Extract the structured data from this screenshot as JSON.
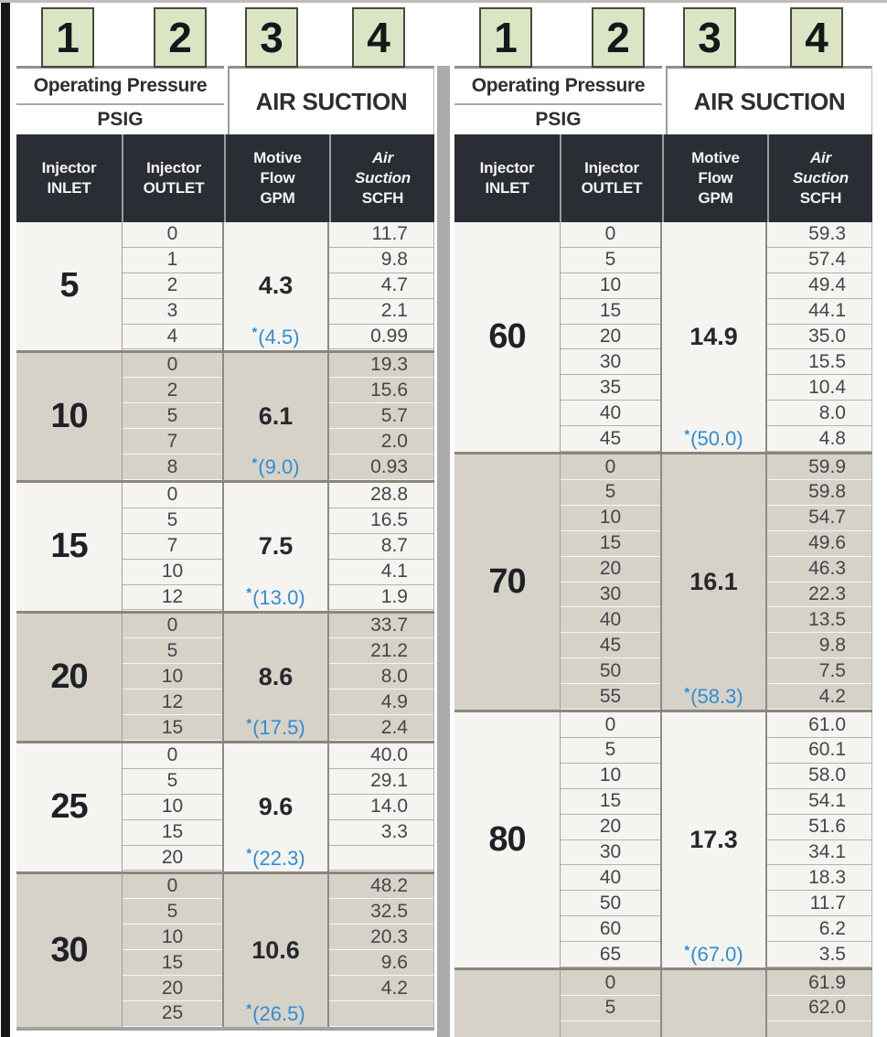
{
  "page": {
    "column_markers": [
      "1",
      "2",
      "3",
      "4"
    ],
    "banner": {
      "pressure_title": "Operating Pressure",
      "pressure_unit": "PSIG",
      "suction_title": "AIR SUCTION"
    },
    "columns": {
      "inlet": {
        "line1": "Injector",
        "line2": "INLET"
      },
      "outlet": {
        "line1": "Injector",
        "line2": "OUTLET"
      },
      "motive": {
        "line1": "Motive",
        "line2": "Flow",
        "line3": "GPM"
      },
      "suction": {
        "line1": "Air",
        "line2": "Suction",
        "line3": "SCFH"
      }
    },
    "colors": {
      "marker_fill": "#dbe5c3",
      "header_dark": "#2a2d34",
      "group_light": "#f5f4f0",
      "group_shaded": "#d6d2c8",
      "starred_value_blue": "#2f8ed4"
    }
  },
  "tables": [
    {
      "name": "left",
      "groups": [
        {
          "inlet": "5",
          "motive": "4.3",
          "motive_star": {
            "mark": "*",
            "value": "(4.5)"
          },
          "rows": [
            {
              "outlet": "0",
              "suction": "11.7"
            },
            {
              "outlet": "1",
              "suction": "9.8"
            },
            {
              "outlet": "2",
              "suction": "4.7"
            },
            {
              "outlet": "3",
              "suction": "2.1"
            },
            {
              "outlet": "4",
              "suction": "0.99"
            }
          ]
        },
        {
          "inlet": "10",
          "motive": "6.1",
          "motive_star": {
            "mark": "*",
            "value": "(9.0)"
          },
          "rows": [
            {
              "outlet": "0",
              "suction": "19.3"
            },
            {
              "outlet": "2",
              "suction": "15.6"
            },
            {
              "outlet": "5",
              "suction": "5.7"
            },
            {
              "outlet": "7",
              "suction": "2.0"
            },
            {
              "outlet": "8",
              "suction": "0.93"
            }
          ]
        },
        {
          "inlet": "15",
          "motive": "7.5",
          "motive_star": {
            "mark": "*",
            "value": "(13.0)"
          },
          "rows": [
            {
              "outlet": "0",
              "suction": "28.8"
            },
            {
              "outlet": "5",
              "suction": "16.5"
            },
            {
              "outlet": "7",
              "suction": "8.7"
            },
            {
              "outlet": "10",
              "suction": "4.1"
            },
            {
              "outlet": "12",
              "suction": "1.9"
            }
          ]
        },
        {
          "inlet": "20",
          "motive": "8.6",
          "motive_star": {
            "mark": "*",
            "value": "(17.5)"
          },
          "rows": [
            {
              "outlet": "0",
              "suction": "33.7"
            },
            {
              "outlet": "5",
              "suction": "21.2"
            },
            {
              "outlet": "10",
              "suction": "8.0"
            },
            {
              "outlet": "12",
              "suction": "4.9"
            },
            {
              "outlet": "15",
              "suction": "2.4"
            }
          ]
        },
        {
          "inlet": "25",
          "motive": "9.6",
          "motive_star": {
            "mark": "*",
            "value": "(22.3)"
          },
          "rows": [
            {
              "outlet": "0",
              "suction": "40.0"
            },
            {
              "outlet": "5",
              "suction": "29.1"
            },
            {
              "outlet": "10",
              "suction": "14.0"
            },
            {
              "outlet": "15",
              "suction": "3.3"
            },
            {
              "outlet": "20",
              "suction": ""
            }
          ]
        },
        {
          "inlet": "30",
          "motive": "10.6",
          "motive_star": {
            "mark": "*",
            "value": "(26.5)"
          },
          "rows": [
            {
              "outlet": "0",
              "suction": "48.2"
            },
            {
              "outlet": "5",
              "suction": "32.5"
            },
            {
              "outlet": "10",
              "suction": "20.3"
            },
            {
              "outlet": "15",
              "suction": "9.6"
            },
            {
              "outlet": "20",
              "suction": "4.2"
            },
            {
              "outlet": "25",
              "suction": ""
            }
          ]
        }
      ]
    },
    {
      "name": "right",
      "groups": [
        {
          "inlet": "60",
          "motive": "14.9",
          "motive_star": {
            "mark": "*",
            "value": "(50.0)"
          },
          "rows": [
            {
              "outlet": "0",
              "suction": "59.3"
            },
            {
              "outlet": "5",
              "suction": "57.4"
            },
            {
              "outlet": "10",
              "suction": "49.4"
            },
            {
              "outlet": "15",
              "suction": "44.1"
            },
            {
              "outlet": "20",
              "suction": "35.0"
            },
            {
              "outlet": "30",
              "suction": "15.5"
            },
            {
              "outlet": "35",
              "suction": "10.4"
            },
            {
              "outlet": "40",
              "suction": "8.0"
            },
            {
              "outlet": "45",
              "suction": "4.8"
            }
          ]
        },
        {
          "inlet": "70",
          "motive": "16.1",
          "motive_star": {
            "mark": "*",
            "value": "(58.3)"
          },
          "rows": [
            {
              "outlet": "0",
              "suction": "59.9"
            },
            {
              "outlet": "5",
              "suction": "59.8"
            },
            {
              "outlet": "10",
              "suction": "54.7"
            },
            {
              "outlet": "15",
              "suction": "49.6"
            },
            {
              "outlet": "20",
              "suction": "46.3"
            },
            {
              "outlet": "30",
              "suction": "22.3"
            },
            {
              "outlet": "40",
              "suction": "13.5"
            },
            {
              "outlet": "45",
              "suction": "9.8"
            },
            {
              "outlet": "50",
              "suction": "7.5"
            },
            {
              "outlet": "55",
              "suction": "4.2"
            }
          ]
        },
        {
          "inlet": "80",
          "motive": "17.3",
          "motive_star": {
            "mark": "*",
            "value": "(67.0)"
          },
          "rows": [
            {
              "outlet": "0",
              "suction": "61.0"
            },
            {
              "outlet": "5",
              "suction": "60.1"
            },
            {
              "outlet": "10",
              "suction": "58.0"
            },
            {
              "outlet": "15",
              "suction": "54.1"
            },
            {
              "outlet": "20",
              "suction": "51.6"
            },
            {
              "outlet": "30",
              "suction": "34.1"
            },
            {
              "outlet": "40",
              "suction": "18.3"
            },
            {
              "outlet": "50",
              "suction": "11.7"
            },
            {
              "outlet": "60",
              "suction": "6.2"
            },
            {
              "outlet": "65",
              "suction": "3.5"
            }
          ]
        },
        {
          "inlet": "",
          "motive": "",
          "motive_star": null,
          "rows": [
            {
              "outlet": "0",
              "suction": "61.9"
            },
            {
              "outlet": "5",
              "suction": "62.0"
            },
            {
              "outlet": "",
              "suction": ""
            }
          ]
        }
      ]
    }
  ]
}
